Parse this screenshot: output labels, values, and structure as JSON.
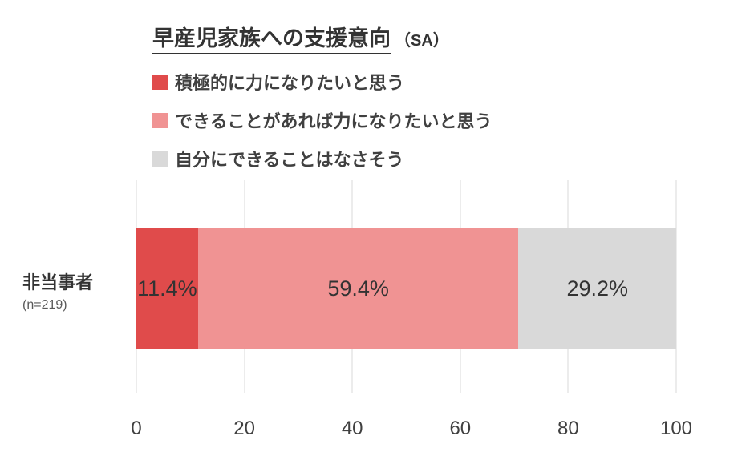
{
  "title": {
    "main": "早産児家族への支援意向",
    "suffix": "（SA）"
  },
  "legend": [
    {
      "label": "積極的に力になりたいと思う",
      "color": "#e04b4b"
    },
    {
      "label": "できることがあれば力になりたいと思う",
      "color": "#f09393"
    },
    {
      "label": "自分にできることはなさそう",
      "color": "#d9d9d9"
    }
  ],
  "category": {
    "label": "非当事者",
    "n": "(n=219)"
  },
  "chart_data": {
    "type": "bar",
    "orientation": "horizontal",
    "stacked": true,
    "title": "早産児家族への支援意向（SA）",
    "categories": [
      "非当事者 (n=219)"
    ],
    "series": [
      {
        "name": "積極的に力になりたいと思う",
        "values": [
          11.4
        ],
        "color": "#e04b4b"
      },
      {
        "name": "できることがあれば力になりたいと思う",
        "values": [
          59.4
        ],
        "color": "#f09393"
      },
      {
        "name": "自分にできることはなさそう",
        "values": [
          29.2
        ],
        "color": "#d9d9d9"
      }
    ],
    "value_labels": [
      "11.4%",
      "59.4%",
      "29.2%"
    ],
    "xlabel": "",
    "ylabel": "",
    "xlim": [
      0,
      100
    ],
    "xticks": [
      0,
      20,
      40,
      60,
      80,
      100
    ],
    "grid": true,
    "grid_color": "#d9d9d9",
    "legend_position": "top-left"
  }
}
